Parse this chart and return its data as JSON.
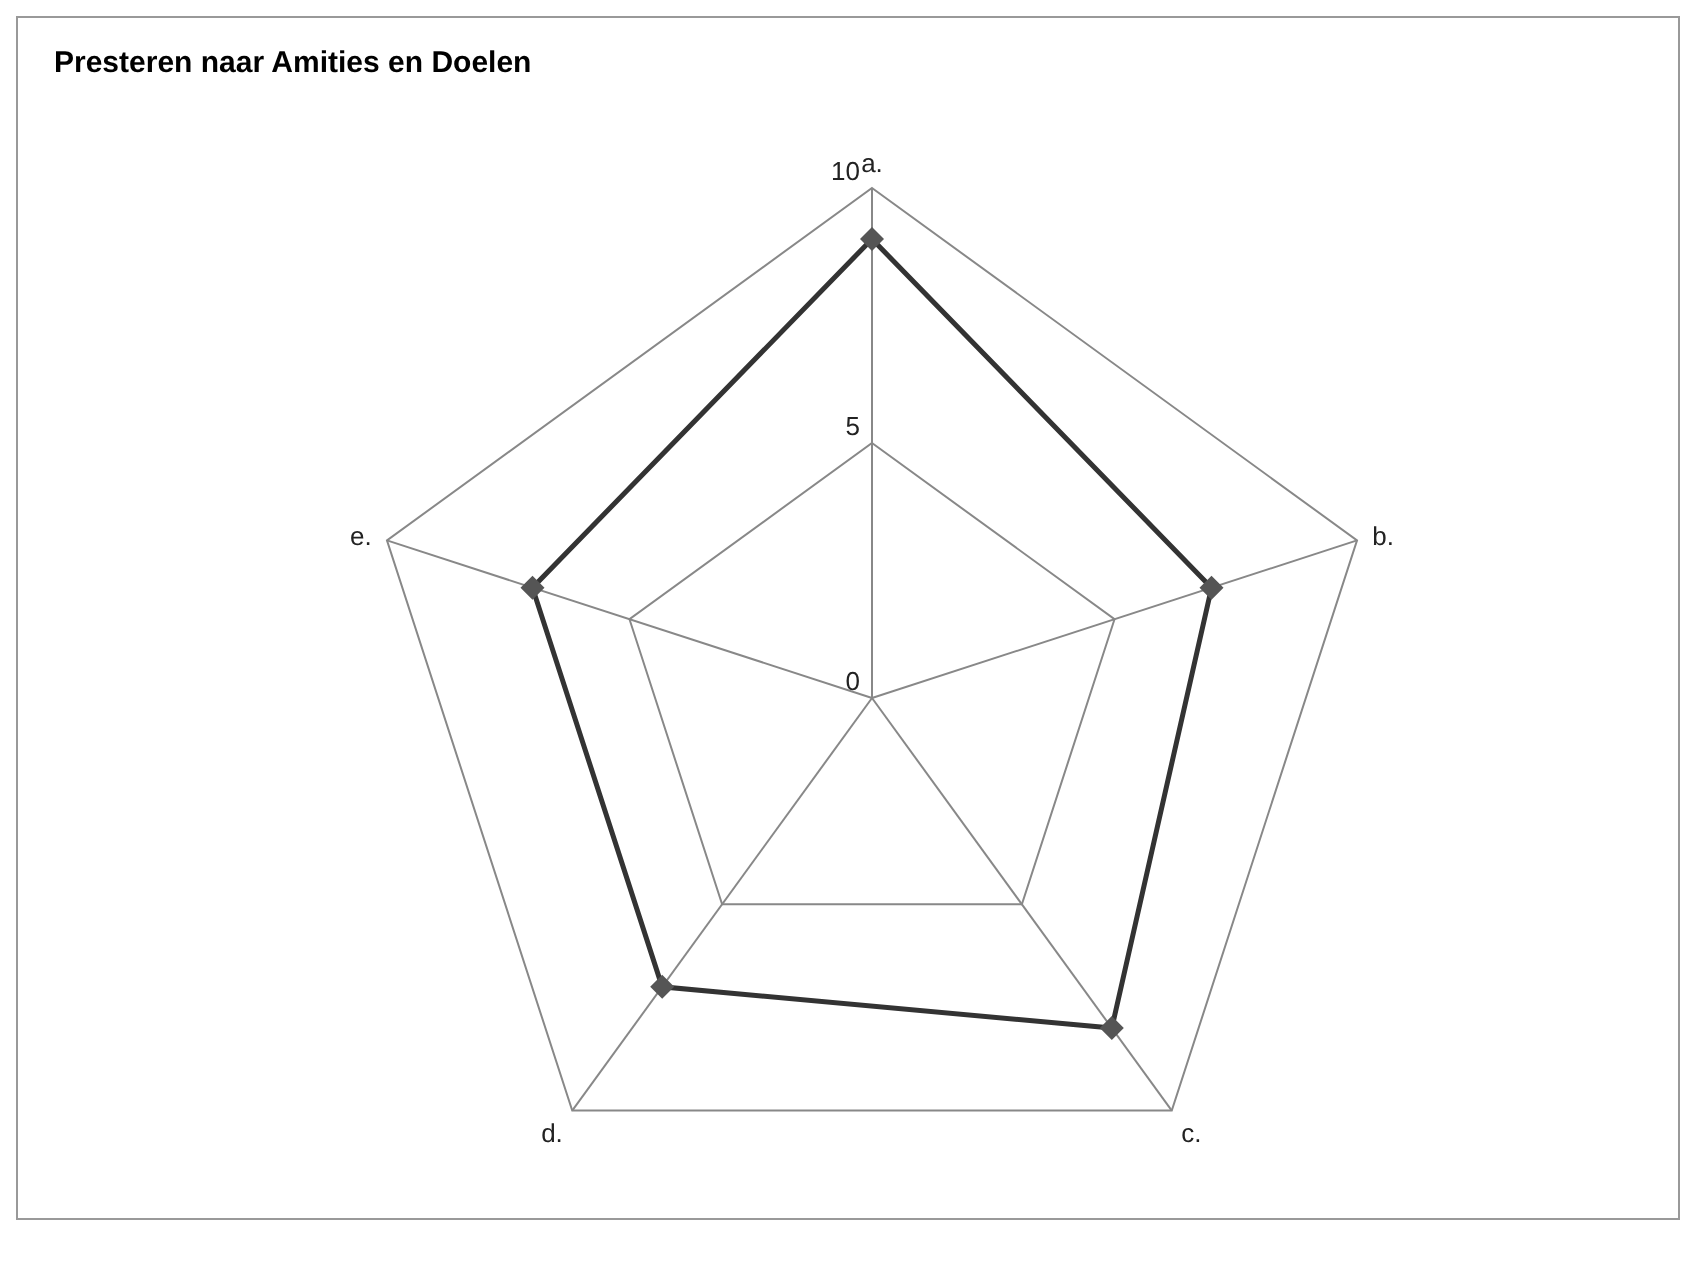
{
  "chart_data": {
    "type": "radar",
    "title": "Presteren naar Amities en Doelen",
    "categories": [
      "a.",
      "b.",
      "c.",
      "d.",
      "e."
    ],
    "series": [
      {
        "color": "#333333",
        "values": [
          9,
          7,
          8,
          7,
          7
        ]
      }
    ],
    "ylim": [
      0,
      10
    ],
    "yticks": [
      0,
      5,
      10
    ],
    "grid": true,
    "marker": "diamond"
  }
}
